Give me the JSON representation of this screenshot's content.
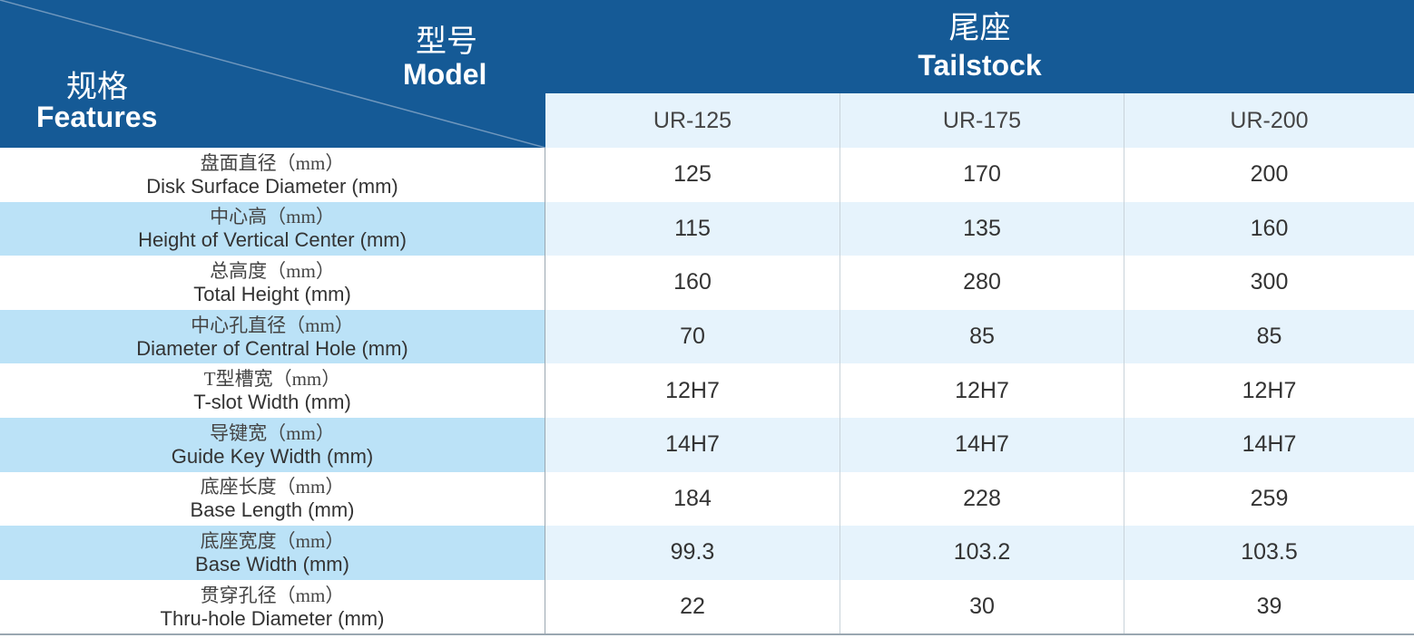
{
  "header": {
    "model_cn": "型号",
    "model_en": "Model",
    "features_cn": "规格",
    "features_en": "Features",
    "group_cn": "尾座",
    "group_en": "Tailstock",
    "models": [
      "UR-125",
      "UR-175",
      "UR-200"
    ]
  },
  "rows": [
    {
      "cn": "盘面直径（mm）",
      "en": "Disk Surface Diameter (mm)",
      "values": [
        125,
        170,
        200
      ]
    },
    {
      "cn": "中心高（mm）",
      "en": "Height of Vertical Center (mm)",
      "values": [
        115,
        135,
        160
      ]
    },
    {
      "cn": "总高度（mm）",
      "en": "Total Height (mm)",
      "values": [
        160,
        280,
        300
      ]
    },
    {
      "cn": "中心孔直径（mm）",
      "en": "Diameter of Central Hole (mm)",
      "values": [
        70,
        85,
        85
      ]
    },
    {
      "cn": "T型槽宽（mm）",
      "en": "T-slot Width (mm)",
      "values": [
        "12H7",
        "12H7",
        "12H7"
      ]
    },
    {
      "cn": "导键宽（mm）",
      "en": "Guide Key Width (mm)",
      "values": [
        "14H7",
        "14H7",
        "14H7"
      ]
    },
    {
      "cn": "底座长度（mm）",
      "en": "Base Length (mm)",
      "values": [
        184,
        228,
        259
      ]
    },
    {
      "cn": "底座宽度（mm）",
      "en": "Base Width (mm)",
      "values": [
        99.3,
        103.2,
        103.5
      ]
    },
    {
      "cn": "贯穿孔径（mm）",
      "en": "Thru-hole Diameter (mm)",
      "values": [
        22,
        30,
        39
      ]
    }
  ]
}
